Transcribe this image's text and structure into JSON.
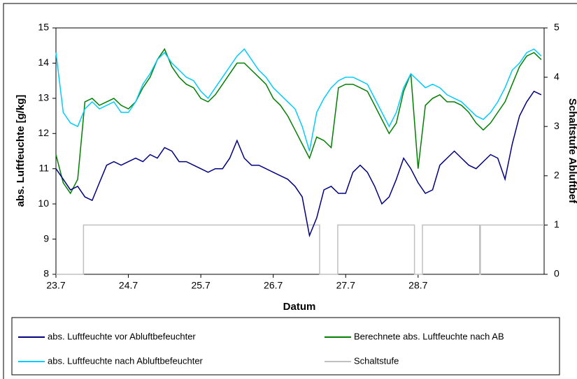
{
  "chart_data": {
    "type": "line",
    "x": [
      23.0,
      23.1,
      23.2,
      23.3,
      23.4,
      23.5,
      23.6,
      23.7,
      23.8,
      23.9,
      24.0,
      24.1,
      24.2,
      24.3,
      24.4,
      24.5,
      24.6,
      24.7,
      24.8,
      24.9,
      25.0,
      25.1,
      25.2,
      25.3,
      25.4,
      25.5,
      25.6,
      25.7,
      25.8,
      25.9,
      26.0,
      26.1,
      26.2,
      26.3,
      26.4,
      26.5,
      26.6,
      26.7,
      26.8,
      26.9,
      27.0,
      27.1,
      27.2,
      27.3,
      27.4,
      27.5,
      27.6,
      27.7,
      27.8,
      27.9,
      28.0,
      28.1,
      28.2,
      28.3,
      28.4,
      28.5,
      28.6,
      28.7,
      28.8,
      28.9,
      29.0,
      29.1,
      29.2,
      29.3,
      29.4,
      29.5,
      29.6,
      29.7
    ],
    "series": [
      {
        "name": "abs. Luftfeuchte vor Abluftbefeuchter",
        "color": "#000080",
        "values": [
          11.0,
          10.7,
          10.4,
          10.5,
          10.2,
          10.1,
          10.6,
          11.1,
          11.2,
          11.1,
          11.2,
          11.3,
          11.2,
          11.4,
          11.3,
          11.6,
          11.5,
          11.2,
          11.2,
          11.1,
          11.0,
          10.9,
          11.0,
          11.0,
          11.3,
          11.8,
          11.3,
          11.1,
          11.1,
          11.0,
          10.9,
          10.8,
          10.7,
          10.5,
          10.2,
          9.1,
          9.6,
          10.4,
          10.5,
          10.3,
          10.3,
          10.9,
          11.1,
          10.9,
          10.5,
          10.0,
          10.2,
          10.7,
          11.3,
          11.0,
          10.6,
          10.3,
          10.4,
          11.1,
          11.3,
          11.5,
          11.3,
          11.1,
          11.0,
          11.2,
          11.4,
          11.3,
          10.7,
          11.7,
          12.5,
          12.9,
          13.2,
          13.1
        ]
      },
      {
        "name": "Berechnete abs. Luftfeuchte nach AB",
        "color": "#008000",
        "values": [
          11.4,
          10.6,
          10.3,
          10.7,
          12.9,
          13.0,
          12.8,
          12.9,
          13.0,
          12.8,
          12.7,
          12.9,
          13.3,
          13.6,
          14.1,
          14.4,
          13.9,
          13.6,
          13.4,
          13.3,
          13.0,
          12.9,
          13.1,
          13.4,
          13.7,
          14.0,
          14.0,
          13.8,
          13.6,
          13.4,
          13.0,
          12.8,
          12.5,
          12.1,
          11.7,
          11.3,
          11.9,
          11.8,
          11.6,
          13.3,
          13.4,
          13.4,
          13.3,
          13.2,
          12.8,
          12.4,
          12.0,
          12.3,
          13.2,
          13.7,
          11.0,
          12.8,
          13.0,
          13.1,
          12.9,
          12.9,
          12.8,
          12.6,
          12.3,
          12.1,
          12.3,
          12.6,
          12.9,
          13.4,
          13.9,
          14.2,
          14.3,
          14.1
        ]
      },
      {
        "name": "abs. Luftfeuchte nach Abluftbefeuchter",
        "color": "#00ccff",
        "values": [
          14.3,
          12.6,
          12.3,
          12.2,
          12.7,
          12.9,
          12.7,
          12.8,
          12.9,
          12.6,
          12.6,
          12.9,
          13.4,
          13.7,
          14.1,
          14.3,
          14.0,
          13.8,
          13.6,
          13.5,
          13.2,
          13.0,
          13.3,
          13.6,
          13.9,
          14.2,
          14.4,
          14.1,
          13.8,
          13.6,
          13.3,
          13.1,
          12.9,
          12.7,
          12.2,
          11.5,
          12.6,
          13.0,
          13.3,
          13.5,
          13.6,
          13.6,
          13.5,
          13.4,
          13.0,
          12.6,
          12.2,
          12.6,
          13.3,
          13.7,
          13.5,
          13.3,
          13.4,
          13.3,
          13.1,
          13.0,
          12.9,
          12.7,
          12.5,
          12.4,
          12.6,
          12.9,
          13.3,
          13.8,
          14.0,
          14.3,
          14.4,
          14.2
        ]
      },
      {
        "name": "Schaltstufe",
        "color": "#c0c0c0",
        "axis": "y2",
        "x": [
          23.0,
          23.38,
          23.38,
          26.64,
          26.64,
          26.89,
          26.89,
          27.95,
          27.95,
          28.06,
          28.06,
          28.85,
          28.85,
          28.86,
          28.86,
          29.74
        ],
        "values": [
          0,
          0,
          1,
          1,
          0,
          0,
          1,
          1,
          0,
          0,
          1,
          1,
          0,
          0,
          1,
          1
        ]
      }
    ],
    "xlabel": "Datum",
    "ylabel": "abs. Luftfeuchte [g/kg]",
    "y2label": "Schaltstufe Abluftbef",
    "xlim": [
      23,
      29.74
    ],
    "xticks": [
      {
        "value": 23,
        "label": "23.7"
      },
      {
        "value": 24,
        "label": "24.7"
      },
      {
        "value": 25,
        "label": "25.7"
      },
      {
        "value": 26,
        "label": "26.7"
      },
      {
        "value": 27,
        "label": "27.7"
      },
      {
        "value": 28,
        "label": "28.7"
      }
    ],
    "ylim": [
      8,
      15
    ],
    "yticks": [
      8,
      9,
      10,
      11,
      12,
      13,
      14,
      15
    ],
    "y2lim": [
      0,
      5
    ],
    "y2ticks": [
      0,
      1,
      2,
      3,
      4,
      5
    ],
    "legend": "bottom"
  }
}
